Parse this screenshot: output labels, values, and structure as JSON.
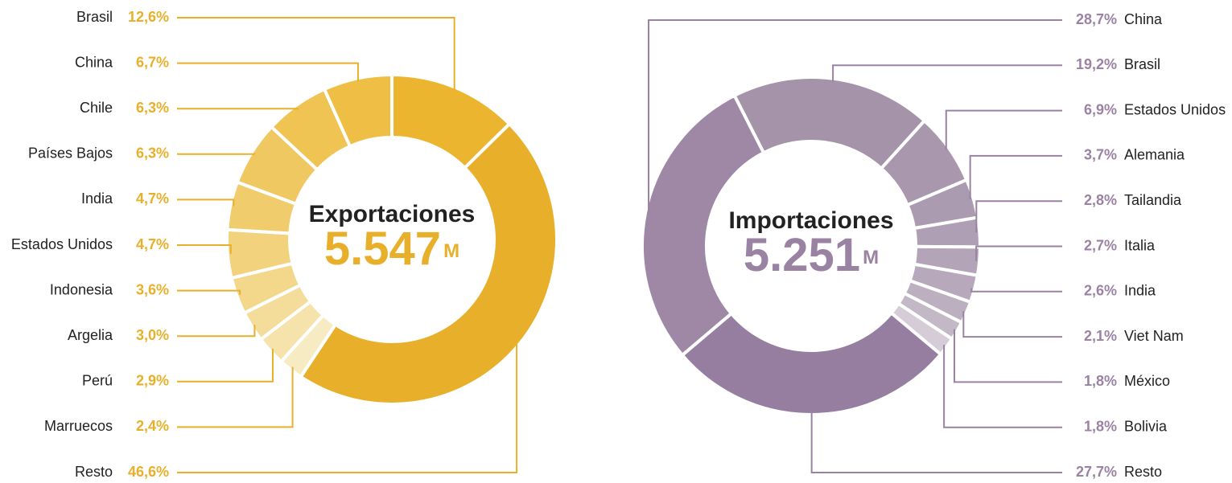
{
  "chart_data": [
    {
      "type": "pie",
      "title": "Exportaciones",
      "total": "5.547",
      "unit": "M",
      "color": "#e8b02a",
      "categories": [
        "Brasil",
        "China",
        "Chile",
        "Países Bajos",
        "India",
        "Estados Unidos",
        "Indonesia",
        "Argelia",
        "Perú",
        "Marruecos",
        "Resto"
      ],
      "values": [
        12.6,
        6.7,
        6.3,
        6.3,
        4.7,
        4.7,
        3.6,
        3.0,
        2.9,
        2.4,
        46.6
      ],
      "value_labels": [
        "12,6%",
        "6,7%",
        "6,3%",
        "6,3%",
        "4,7%",
        "4,7%",
        "3,6%",
        "3,0%",
        "2,9%",
        "2,4%",
        "46,6%"
      ],
      "colors": [
        "#ecb52f",
        "#efbf45",
        "#efc453",
        "#f0c862",
        "#f1cc6d",
        "#f2d27c",
        "#f3d88b",
        "#f4dd9b",
        "#f5e3ab",
        "#f7ebc3",
        "#e8b02a"
      ]
    },
    {
      "type": "pie",
      "title": "Importaciones",
      "total": "5.251",
      "unit": "M",
      "color": "#9a82a2",
      "categories": [
        "China",
        "Brasil",
        "Estados Unidos",
        "Alemania",
        "Tailandia",
        "Italia",
        "India",
        "Viet Nam",
        "México",
        "Bolivia",
        "Resto"
      ],
      "values": [
        28.7,
        19.2,
        6.9,
        3.7,
        2.8,
        2.7,
        2.6,
        2.1,
        1.8,
        1.8,
        27.7
      ],
      "value_labels": [
        "28,7%",
        "19,2%",
        "6,9%",
        "3,7%",
        "2,8%",
        "2,7%",
        "2,6%",
        "2,1%",
        "1,8%",
        "1,8%",
        "27,7%"
      ],
      "colors": [
        "#9e88a5",
        "#a593aa",
        "#a897ad",
        "#ab9bb0",
        "#af9fb4",
        "#b3a4b7",
        "#b7a9bb",
        "#bcafbf",
        "#c3b8c6",
        "#d5ccd8",
        "#967ea0"
      ]
    }
  ]
}
